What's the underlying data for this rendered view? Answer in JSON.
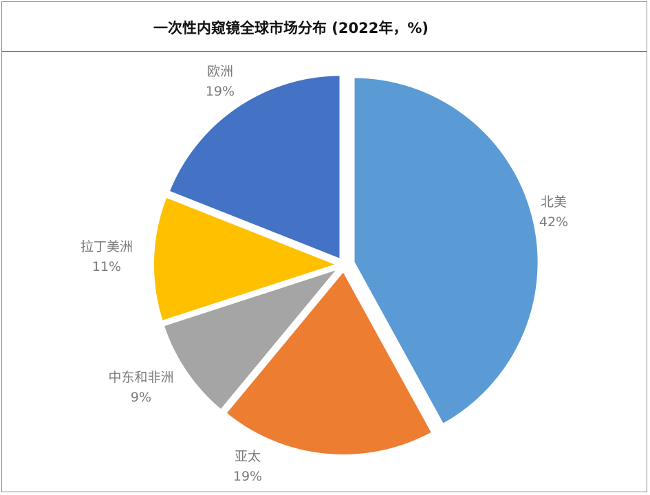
{
  "chart_data": {
    "type": "pie",
    "title": "一次性内窥镜全球市场分布 (2022年，%)",
    "slices": [
      {
        "label": "北美",
        "value": 42,
        "value_label": "42%",
        "color": "#5B9BD5"
      },
      {
        "label": "亚太",
        "value": 19,
        "value_label": "19%",
        "color": "#ED7D31"
      },
      {
        "label": "中东和非洲",
        "value": 9,
        "value_label": "9%",
        "color": "#A5A5A5"
      },
      {
        "label": "拉丁美洲",
        "value": 11,
        "value_label": "11%",
        "color": "#FFC000"
      },
      {
        "label": "欧洲",
        "value": 19,
        "value_label": "19%",
        "color": "#4472C4"
      }
    ],
    "legend": "none",
    "data_labels": "outside"
  }
}
